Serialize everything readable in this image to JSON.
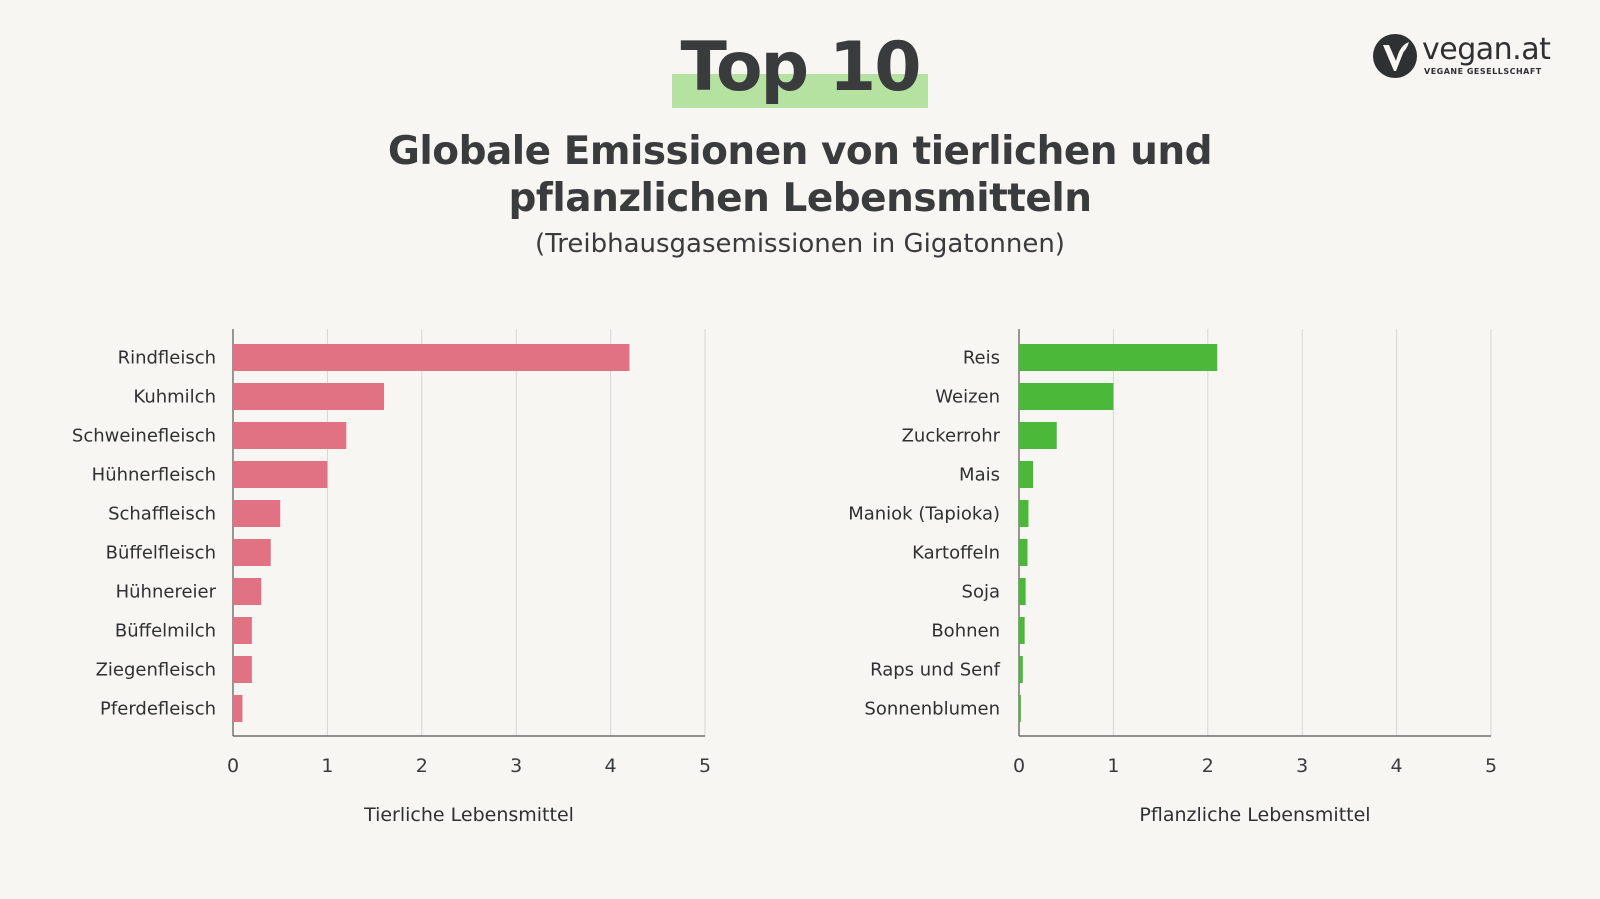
{
  "header": {
    "top_title": "Top 10",
    "heading_line1": "Globale Emissionen von tierlichen und",
    "heading_line2": "pflanzlichen Lebensmitteln",
    "subheading": "(Treibhausgasemissionen in Gigatonnen)"
  },
  "logo": {
    "name": "vegan.at",
    "tagline": "VEGANE GESELLSCHAFT",
    "icon": "vegan-v-leaf-icon"
  },
  "chart_data": [
    {
      "type": "bar",
      "orientation": "horizontal",
      "categories": [
        "Rindfleisch",
        "Kuhmilch",
        "Schweinefleisch",
        "Hühnerfleisch",
        "Schaffleisch",
        "Büffelfleisch",
        "Hühnereier",
        "Büffelmilch",
        "Ziegenfleisch",
        "Pferdefleisch"
      ],
      "values": [
        4.2,
        1.6,
        1.2,
        1.0,
        0.5,
        0.4,
        0.3,
        0.2,
        0.2,
        0.1
      ],
      "xlabel": "Tierliche Lebensmittel",
      "xlim": [
        0,
        5
      ],
      "xticks": [
        0,
        1,
        2,
        3,
        4,
        5
      ],
      "grid": true,
      "color": "#e07284"
    },
    {
      "type": "bar",
      "orientation": "horizontal",
      "categories": [
        "Reis",
        "Weizen",
        "Zuckerrohr",
        "Mais",
        "Maniok (Tapioka)",
        "Kartoffeln",
        "Soja",
        "Bohnen",
        "Raps und Senf",
        "Sonnenblumen"
      ],
      "values": [
        2.1,
        1.0,
        0.4,
        0.15,
        0.1,
        0.09,
        0.07,
        0.06,
        0.04,
        0.02
      ],
      "xlabel": "Pflanzliche Lebensmittel",
      "xlim": [
        0,
        5
      ],
      "xticks": [
        0,
        1,
        2,
        3,
        4,
        5
      ],
      "grid": true,
      "color": "#4cb83a"
    }
  ]
}
